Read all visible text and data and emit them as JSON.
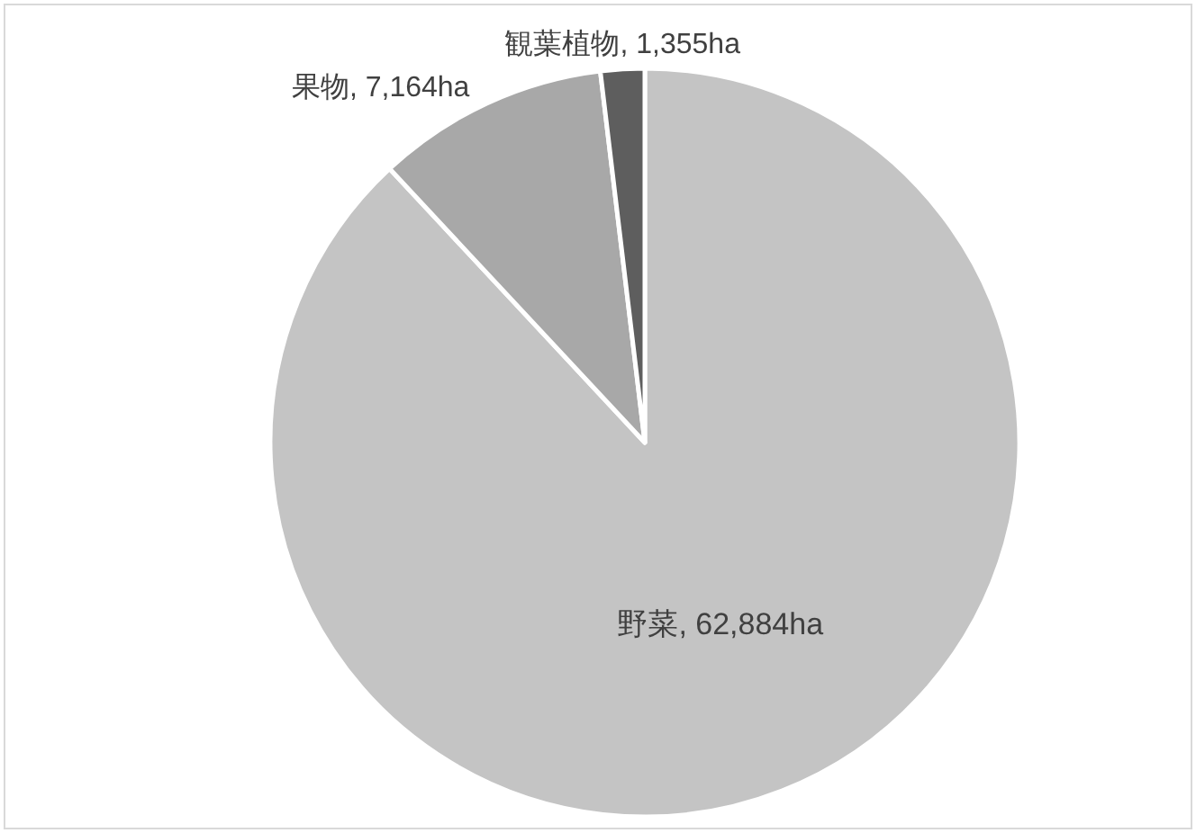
{
  "chart_data": {
    "type": "pie",
    "categories": [
      "野菜",
      "果物",
      "観葉植物"
    ],
    "values": [
      62884,
      7164,
      1355
    ],
    "value_labels": [
      "62,884ha",
      "7,164ha",
      "1,355ha"
    ],
    "colors": [
      "#c4c4c4",
      "#a8a8a8",
      "#5e5e5e"
    ],
    "legend": false
  }
}
